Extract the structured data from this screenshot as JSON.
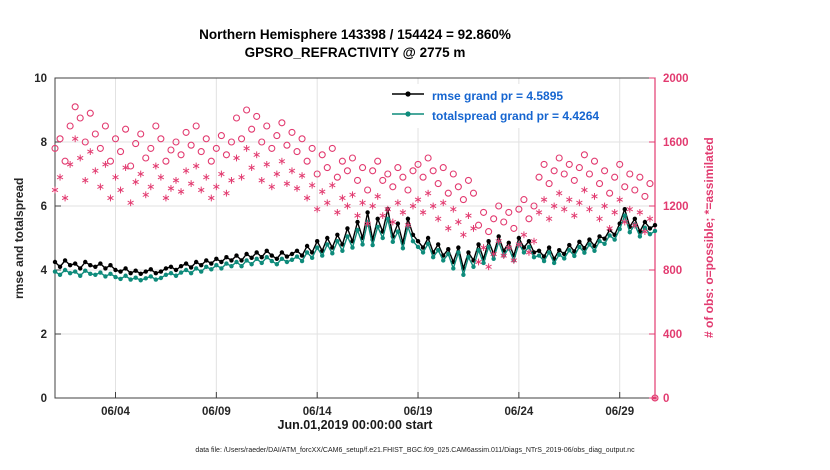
{
  "title": {
    "line1": "Northern Hemisphere 143398 / 154424 = 92.860%",
    "line2": "GPSRO_REFRACTIVITY @ 2775 m"
  },
  "legend": [
    {
      "label": "rmse grand pr = 4.5895",
      "color": "#000000"
    },
    {
      "label": "totalspread grand pr = 4.4264",
      "color": "#0e8b7b"
    }
  ],
  "footer": {
    "datafile": "data file: /Users/raeder/DAI/ATM_forcXX/CAM6_setup/f.e21.FHIST_BGC.f09_025.CAM6assim.011/Diags_NTrS_2019-06/obs_diag_output.nc"
  },
  "colors": {
    "pink": "#e23b70",
    "teal": "#0e8b7b",
    "black": "#000000",
    "legend_text": "#1565d0",
    "grid": "#e2e2e2",
    "axis": "#404040",
    "tick_label": "#262626"
  },
  "chart_data": {
    "type": "line",
    "title": "Northern Hemisphere 143398 / 154424 = 92.860% — GPSRO_REFRACTIVITY @ 2775 m",
    "xlabel": "Jun.01,2019 00:00:00 start",
    "x_range": [
      0,
      29.75
    ],
    "x_step_days": 0.25,
    "x_ticks": [
      {
        "day": 3,
        "label": "06/04"
      },
      {
        "day": 8,
        "label": "06/09"
      },
      {
        "day": 13,
        "label": "06/14"
      },
      {
        "day": 18,
        "label": "06/19"
      },
      {
        "day": 23,
        "label": "06/24"
      },
      {
        "day": 28,
        "label": "06/29"
      }
    ],
    "left_axis": {
      "label": "rmse and totalspread",
      "range": [
        0,
        10
      ],
      "ticks": [
        0,
        2,
        4,
        6,
        8,
        10
      ]
    },
    "right_axis": {
      "label": "# of obs: o=possible; *=assimilated",
      "range": [
        0,
        2000
      ],
      "ticks": [
        0,
        400,
        800,
        1200,
        1600,
        2000
      ]
    },
    "grid": true,
    "legend_position": "top-inside",
    "series": [
      {
        "name": "rmse",
        "axis": "left",
        "color": "#000000",
        "marker": "dot",
        "line": true,
        "grand_mean": 4.5895,
        "values": [
          4.25,
          4.1,
          4.3,
          4.15,
          4.2,
          4.05,
          4.25,
          4.15,
          4.1,
          4.2,
          4.05,
          4.15,
          4.0,
          3.95,
          4.05,
          3.9,
          3.98,
          3.88,
          3.95,
          4.02,
          3.9,
          3.95,
          4.05,
          4.1,
          4.0,
          4.12,
          4.2,
          4.08,
          4.25,
          4.15,
          4.3,
          4.2,
          4.35,
          4.25,
          4.4,
          4.3,
          4.45,
          4.3,
          4.5,
          4.38,
          4.55,
          4.4,
          4.6,
          4.45,
          4.35,
          4.55,
          4.42,
          4.5,
          4.6,
          4.45,
          4.75,
          4.55,
          4.9,
          4.6,
          5.0,
          4.7,
          5.1,
          4.8,
          5.3,
          4.9,
          5.5,
          5.0,
          5.8,
          4.95,
          5.6,
          5.2,
          5.9,
          5.05,
          5.45,
          4.85,
          5.6,
          5.1,
          4.9,
          4.7,
          5.0,
          4.55,
          4.8,
          4.45,
          4.65,
          4.25,
          4.7,
          4.05,
          4.55,
          4.3,
          4.8,
          4.35,
          4.9,
          4.5,
          5.05,
          4.6,
          4.85,
          4.45,
          5.0,
          4.7,
          4.9,
          4.55,
          4.6,
          4.42,
          4.7,
          4.35,
          4.62,
          4.5,
          4.78,
          4.58,
          4.88,
          4.68,
          4.95,
          4.75,
          5.05,
          4.98,
          5.25,
          5.1,
          5.45,
          5.9,
          5.35,
          5.6,
          5.2,
          5.5,
          5.3,
          5.4
        ]
      },
      {
        "name": "totalspread",
        "axis": "left",
        "color": "#0e8b7b",
        "marker": "dot",
        "line": true,
        "grand_mean": 4.4264,
        "values": [
          3.95,
          3.85,
          4.0,
          3.9,
          3.95,
          3.82,
          3.98,
          3.88,
          3.85,
          3.92,
          3.8,
          3.88,
          3.78,
          3.72,
          3.82,
          3.7,
          3.76,
          3.68,
          3.74,
          3.8,
          3.7,
          3.75,
          3.85,
          3.9,
          3.82,
          3.92,
          4.0,
          3.9,
          4.05,
          3.95,
          4.1,
          4.02,
          4.15,
          4.05,
          4.2,
          4.12,
          4.25,
          4.12,
          4.3,
          4.18,
          4.35,
          4.22,
          4.4,
          4.28,
          4.18,
          4.35,
          4.25,
          4.32,
          4.42,
          4.28,
          4.55,
          4.38,
          4.7,
          4.45,
          4.8,
          4.52,
          4.9,
          4.6,
          5.05,
          4.7,
          5.25,
          4.8,
          5.5,
          4.78,
          5.35,
          5.0,
          5.6,
          4.88,
          5.2,
          4.68,
          5.35,
          4.9,
          4.72,
          4.55,
          4.82,
          4.4,
          4.62,
          4.3,
          4.5,
          4.05,
          4.55,
          3.85,
          4.4,
          4.1,
          4.62,
          4.22,
          4.72,
          4.35,
          4.88,
          4.45,
          4.68,
          4.3,
          4.82,
          4.55,
          4.72,
          4.4,
          4.45,
          4.28,
          4.55,
          4.22,
          4.48,
          4.36,
          4.62,
          4.44,
          4.72,
          4.54,
          4.8,
          4.6,
          4.9,
          4.82,
          5.08,
          4.95,
          5.28,
          5.7,
          5.18,
          5.42,
          5.05,
          5.32,
          5.12,
          5.22
        ]
      },
      {
        "name": "possible",
        "axis": "right",
        "color": "#e23b70",
        "marker": "open-circle",
        "line": false,
        "values": [
          1560,
          1620,
          1480,
          1700,
          1820,
          1750,
          1600,
          1780,
          1650,
          1560,
          1700,
          1480,
          1620,
          1540,
          1680,
          1450,
          1590,
          1650,
          1500,
          1560,
          1700,
          1620,
          1480,
          1550,
          1600,
          1520,
          1660,
          1580,
          1700,
          1540,
          1620,
          1480,
          1560,
          1640,
          1520,
          1600,
          1750,
          1620,
          1800,
          1680,
          1760,
          1600,
          1700,
          1560,
          1640,
          1720,
          1580,
          1660,
          1540,
          1620,
          1480,
          1560,
          1400,
          1520,
          1440,
          1560,
          1380,
          1480,
          1420,
          1500,
          1360,
          1440,
          1300,
          1420,
          1480,
          1360,
          1400,
          1320,
          1440,
          1380,
          1300,
          1420,
          1460,
          1380,
          1500,
          1420,
          1340,
          1440,
          1280,
          1400,
          1320,
          1240,
          1360,
          1280,
          1080,
          1160,
          1040,
          1120,
          1200,
          1100,
          1160,
          1060,
          1180,
          1240,
          1120,
          1200,
          1380,
          1460,
          1340,
          1420,
          1500,
          1400,
          1460,
          1360,
          1440,
          1520,
          1400,
          1480,
          1340,
          1420,
          1280,
          1380,
          1460,
          1320,
          1400,
          1300,
          1380,
          1260,
          1340,
          0
        ]
      },
      {
        "name": "assimilated",
        "axis": "right",
        "color": "#e23b70",
        "marker": "asterisk",
        "line": false,
        "values": [
          1300,
          1380,
          1250,
          1460,
          1620,
          1500,
          1360,
          1540,
          1420,
          1320,
          1460,
          1250,
          1380,
          1300,
          1440,
          1220,
          1350,
          1400,
          1270,
          1320,
          1450,
          1380,
          1250,
          1310,
          1360,
          1290,
          1420,
          1340,
          1450,
          1300,
          1380,
          1250,
          1320,
          1400,
          1280,
          1360,
          1500,
          1380,
          1560,
          1440,
          1520,
          1360,
          1460,
          1320,
          1400,
          1480,
          1340,
          1420,
          1310,
          1390,
          1250,
          1330,
          1180,
          1290,
          1220,
          1330,
          1160,
          1250,
          1200,
          1270,
          1140,
          1220,
          1090,
          1200,
          1260,
          1140,
          1180,
          1100,
          1220,
          1160,
          1080,
          1200,
          1240,
          1160,
          1280,
          1200,
          1120,
          1220,
          1060,
          1180,
          1100,
          1020,
          1140,
          1060,
          850,
          940,
          820,
          900,
          980,
          890,
          940,
          860,
          960,
          1020,
          910,
          980,
          1160,
          1240,
          1120,
          1200,
          1280,
          1180,
          1240,
          1140,
          1220,
          1300,
          1180,
          1260,
          1120,
          1200,
          1060,
          1160,
          1240,
          1100,
          1180,
          1080,
          1160,
          1040,
          1120,
          0
        ]
      }
    ]
  }
}
